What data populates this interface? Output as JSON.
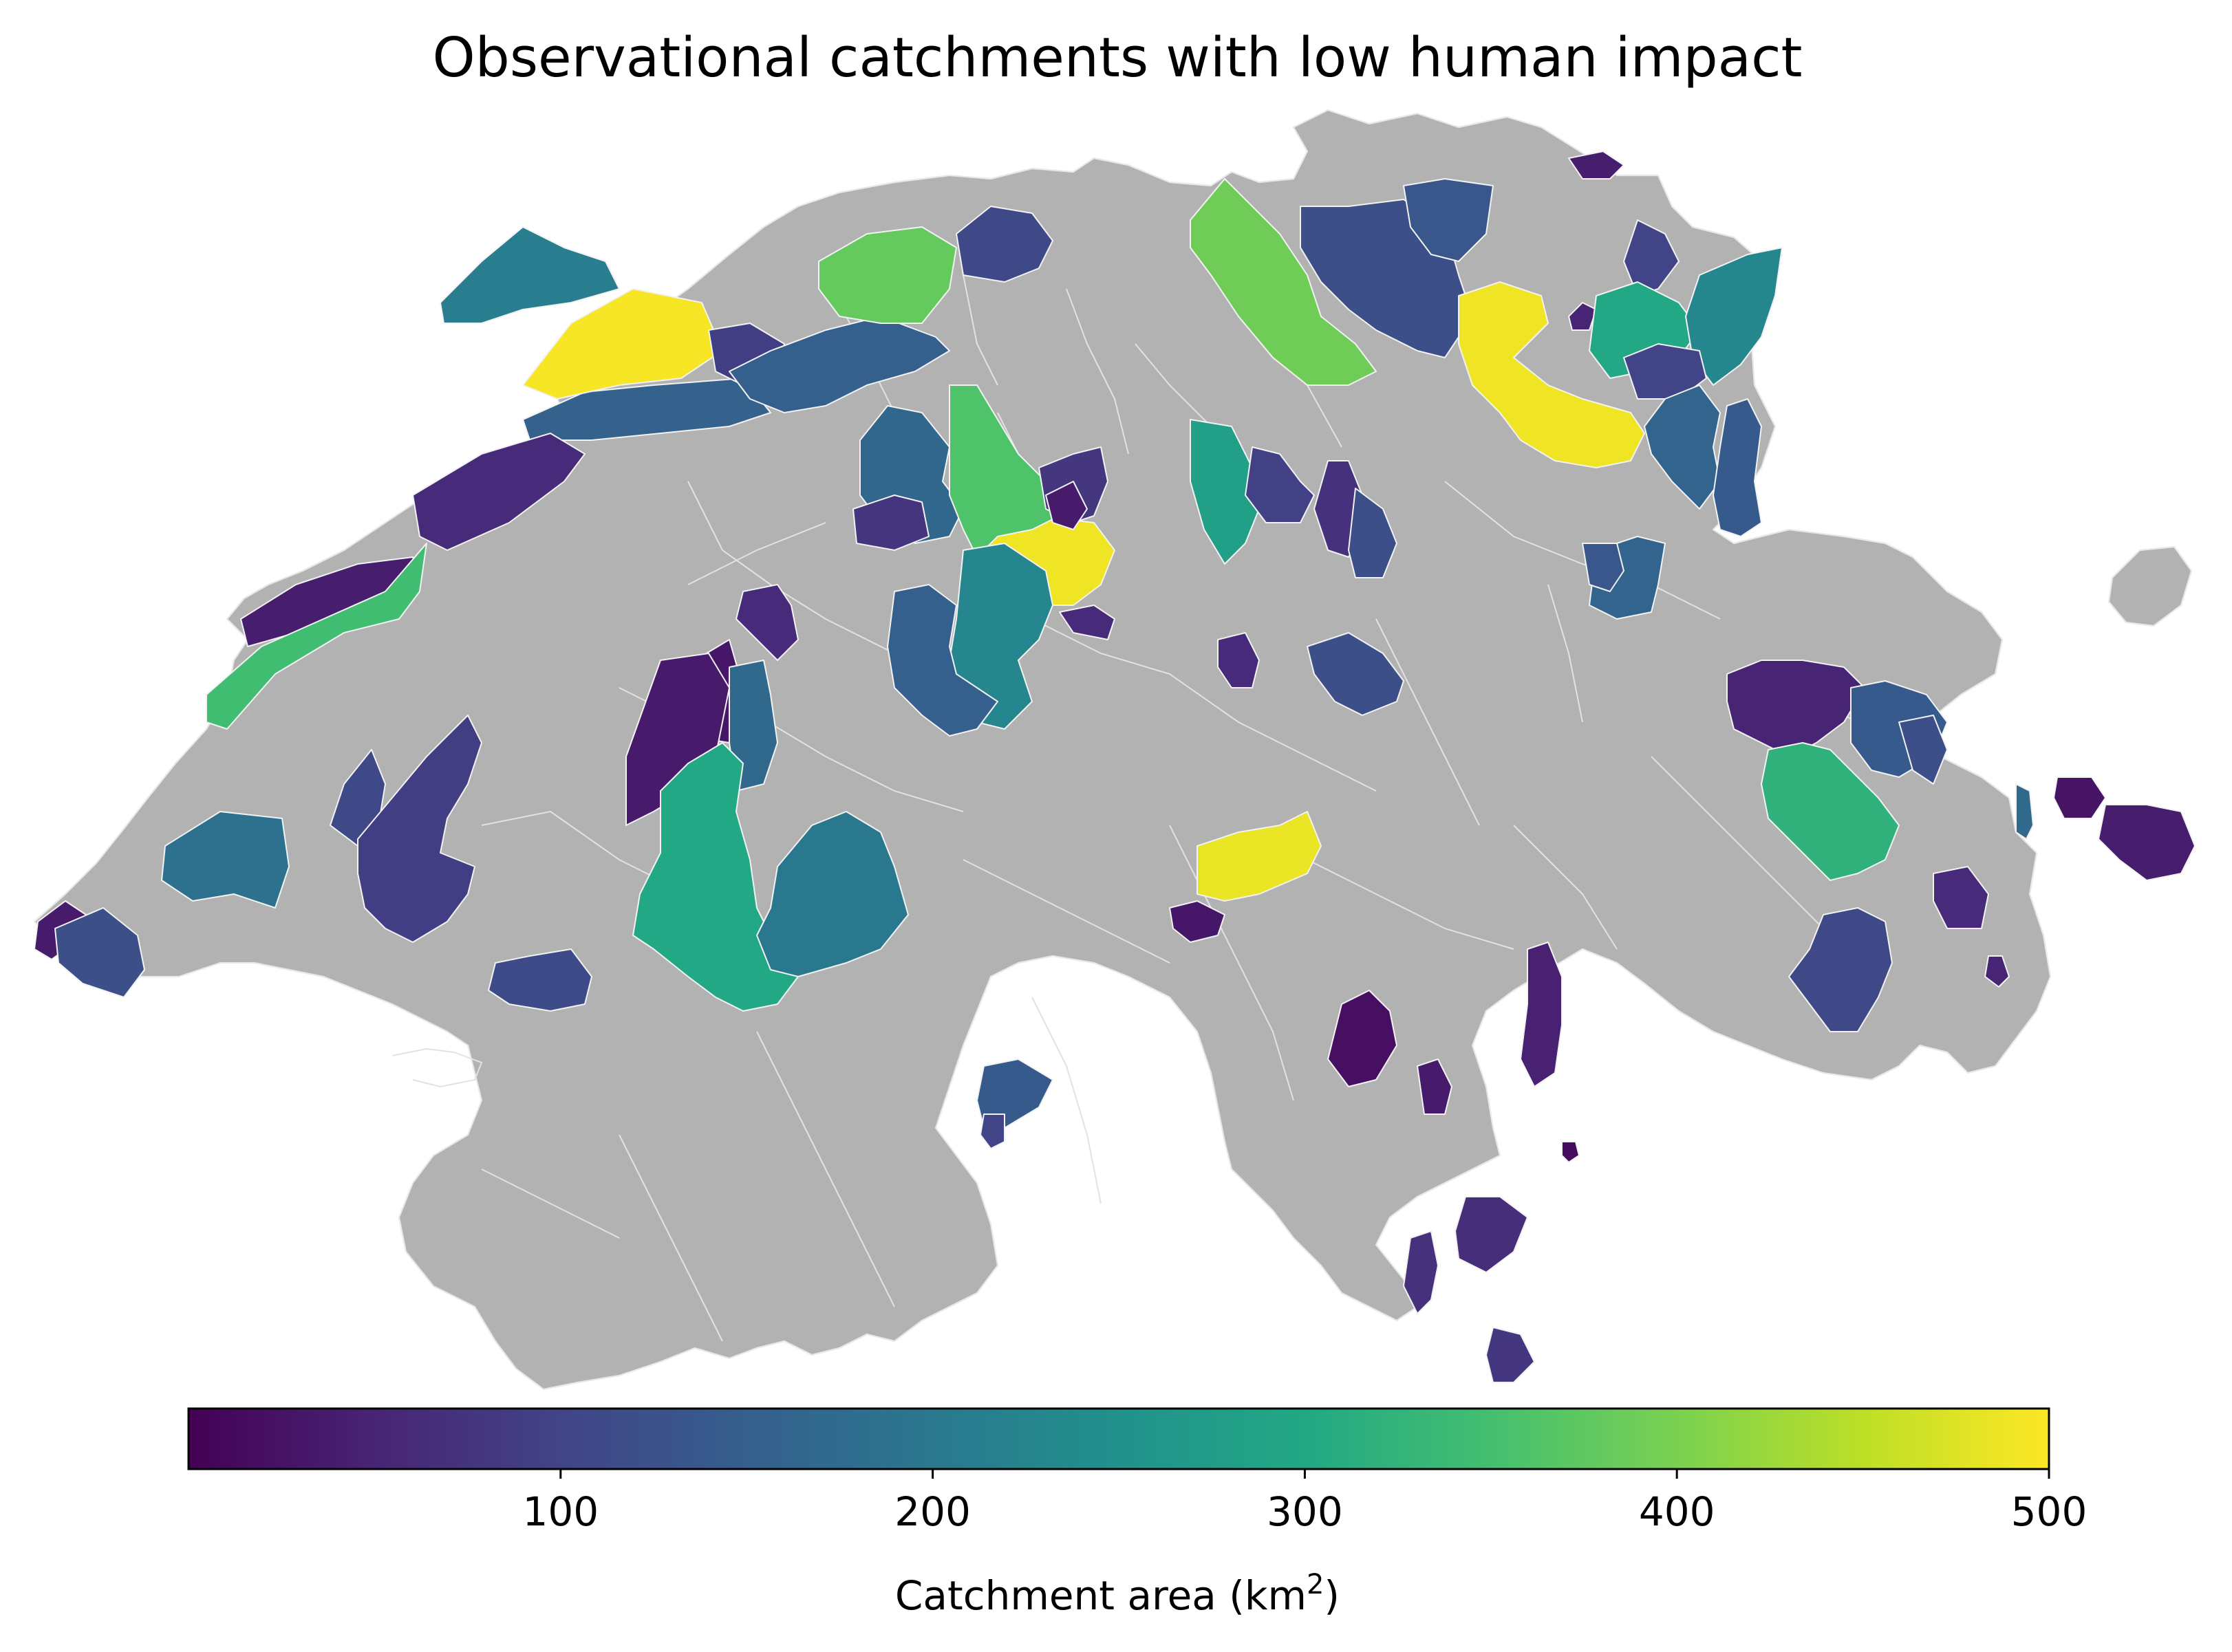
{
  "map": {
    "title": "Observational catchments with low human impact",
    "background_region_color": "#b2b2b2",
    "boundary_color": "#ffffff"
  },
  "colorbar": {
    "colormap": "viridis",
    "min": 0,
    "max": 500,
    "ticks": [
      100,
      200,
      300,
      400,
      500
    ],
    "label_prefix": "Catchment area (km",
    "label_superscript": "2",
    "label_suffix": ")"
  },
  "catchment_areas_km2": [
    35,
    120,
    185,
    210,
    155,
    60,
    40,
    495,
    90,
    345,
    150,
    380,
    110,
    165,
    75,
    490,
    360,
    230,
    80,
    35,
    60,
    150,
    280,
    95,
    70,
    120,
    390,
    120,
    135,
    490,
    50,
    100,
    300,
    230,
    100,
    160,
    140,
    40,
    160,
    60,
    120,
    60,
    30,
    35,
    110,
    90,
    170,
    300,
    200,
    115,
    485,
    30,
    50,
    140,
    320,
    120,
    170,
    25,
    40,
    60,
    110,
    50,
    135,
    20,
    45,
    35,
    15,
    65,
    70,
    80,
    140,
    100,
    25
  ]
}
